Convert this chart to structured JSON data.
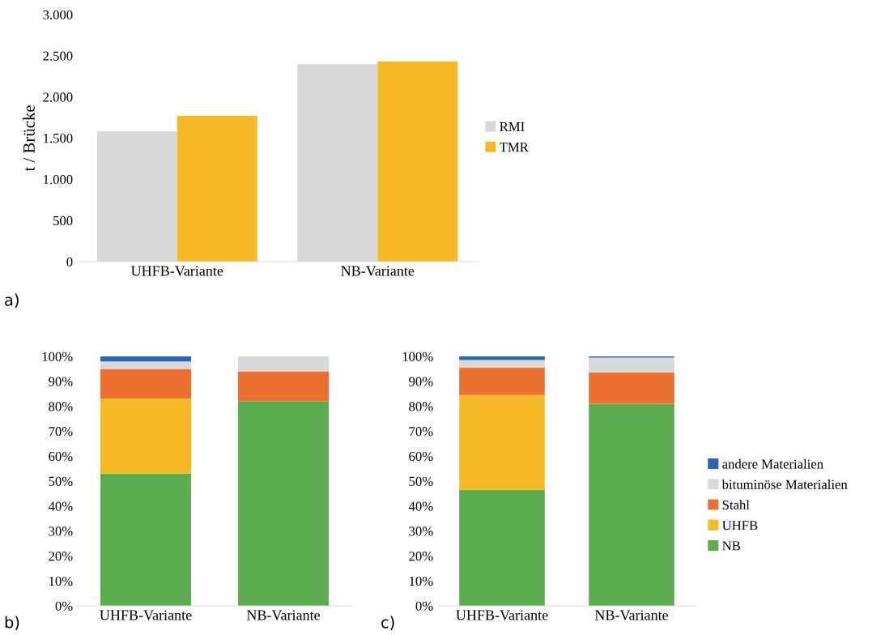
{
  "chart_data": [
    {
      "type": "bar",
      "ylabel": "t / Brücke",
      "categories": [
        "UHFB-Variante",
        "NB-Variante"
      ],
      "series": [
        {
          "name": "RMI",
          "color": "#d9d9d9",
          "values": [
            1580,
            2400
          ]
        },
        {
          "name": "TMR",
          "color": "#f7b925",
          "values": [
            1770,
            2430
          ]
        }
      ],
      "ylim": [
        0,
        3000
      ],
      "yticks": [
        {
          "value": 0,
          "label": "0"
        },
        {
          "value": 500,
          "label": "500"
        },
        {
          "value": 1000,
          "label": "1.000"
        },
        {
          "value": 1500,
          "label": "1.500"
        },
        {
          "value": 2000,
          "label": "2.000"
        },
        {
          "value": 2500,
          "label": "2.500"
        },
        {
          "value": 3000,
          "label": "3.000"
        }
      ],
      "legend": "right",
      "annotations": [
        "a)"
      ]
    },
    {
      "type": "bar",
      "stacked": true,
      "categories": [
        "UHFB-Variante",
        "NB-Variante"
      ],
      "series": [
        {
          "color": "#5bad4f",
          "values": [
            53,
            82
          ]
        },
        {
          "color": "#f7b925",
          "values": [
            30,
            0
          ]
        },
        {
          "color": "#ec7030",
          "values": [
            12,
            12
          ]
        },
        {
          "color": "#d9d9d9",
          "values": [
            3,
            6
          ]
        },
        {
          "color": "#2e64b8",
          "values": [
            2,
            0
          ]
        }
      ],
      "ylim": [
        0,
        100
      ],
      "yticks": [
        {
          "value": 0,
          "label": "0%"
        },
        {
          "value": 10,
          "label": "10%"
        },
        {
          "value": 20,
          "label": "20%"
        },
        {
          "value": 30,
          "label": "30%"
        },
        {
          "value": 40,
          "label": "40%"
        },
        {
          "value": 50,
          "label": "50%"
        },
        {
          "value": 60,
          "label": "60%"
        },
        {
          "value": 70,
          "label": "70%"
        },
        {
          "value": 80,
          "label": "80%"
        },
        {
          "value": 90,
          "label": "90%"
        },
        {
          "value": 100,
          "label": "100%"
        }
      ],
      "annotations": [
        "b)"
      ]
    },
    {
      "type": "bar",
      "stacked": true,
      "categories": [
        "UHFB-Variante",
        "NB-Variante"
      ],
      "series": [
        {
          "name": "NB",
          "color": "#5bad4f",
          "values": [
            46.5,
            81
          ]
        },
        {
          "name": "UHFB",
          "color": "#f7b925",
          "values": [
            38,
            0
          ]
        },
        {
          "name": "Stahl",
          "color": "#ec7030",
          "values": [
            11,
            12.5
          ]
        },
        {
          "name": "bituminöse Materialien",
          "color": "#d9d9d9",
          "values": [
            3,
            6
          ]
        },
        {
          "name": "andere Materialien",
          "color": "#2e64b8",
          "values": [
            1.5,
            0.5
          ]
        }
      ],
      "ylim": [
        0,
        100
      ],
      "yticks": [
        {
          "value": 0,
          "label": "0%"
        },
        {
          "value": 10,
          "label": "10%"
        },
        {
          "value": 20,
          "label": "20%"
        },
        {
          "value": 30,
          "label": "30%"
        },
        {
          "value": 40,
          "label": "40%"
        },
        {
          "value": 50,
          "label": "50%"
        },
        {
          "value": 60,
          "label": "60%"
        },
        {
          "value": 70,
          "label": "70%"
        },
        {
          "value": 80,
          "label": "80%"
        },
        {
          "value": 90,
          "label": "90%"
        },
        {
          "value": 100,
          "label": "100%"
        }
      ],
      "legend": "right",
      "annotations": [
        "c)"
      ]
    }
  ]
}
